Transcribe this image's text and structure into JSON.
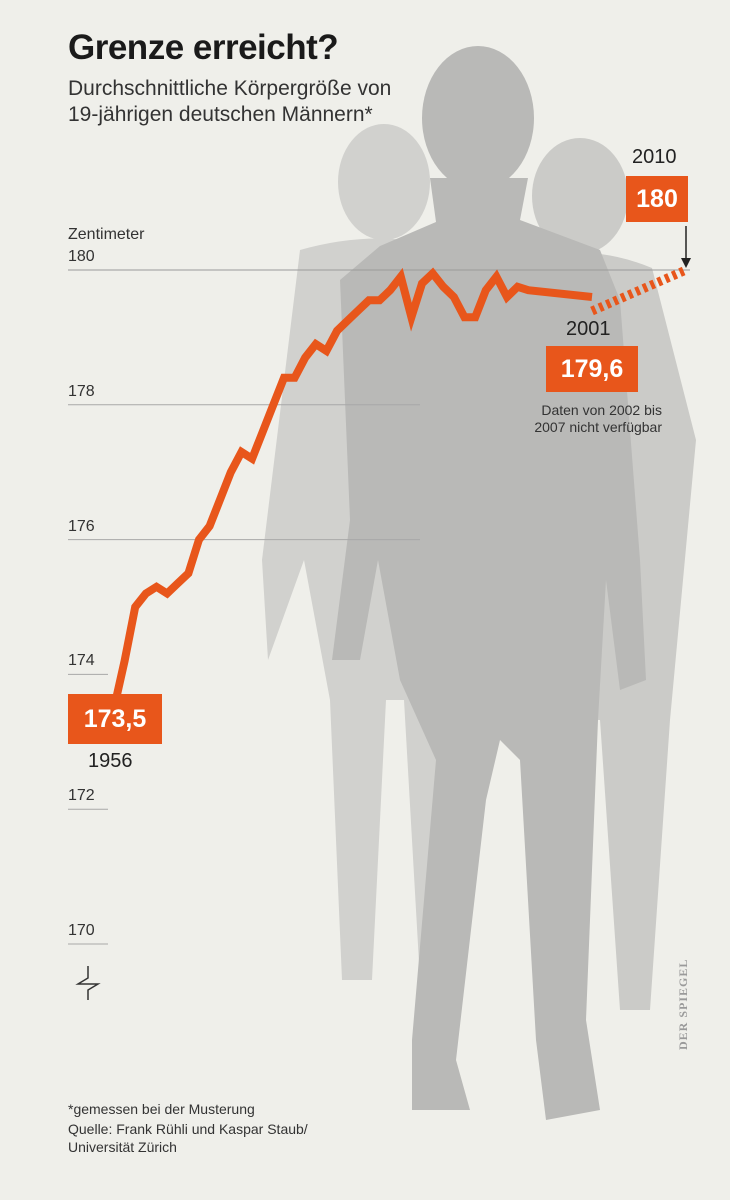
{
  "title": "Grenze erreicht?",
  "subtitle": "Durchschnittliche Körpergröße von 19-jährigen deutschen Männern*",
  "footnote": "*gemessen bei der Musterung",
  "source": "Quelle: Frank Rühli und Kaspar Staub/ Universität Zürich",
  "publisher": "DER SPIEGEL",
  "note": "Daten von 2002 bis 2007 nicht verfügbar",
  "highlights": {
    "start": {
      "year": "1956",
      "value": "173,5"
    },
    "peak": {
      "year": "2001",
      "value": "179,6"
    },
    "end": {
      "year": "2010",
      "value": "180"
    }
  },
  "colors": {
    "line": "#e8561b",
    "background": "#efefea",
    "silhouette": "#b9b9b7"
  },
  "chart_data": {
    "type": "line",
    "title": "Grenze erreicht?",
    "ylabel": "Zentimeter",
    "yticks": [
      170,
      172,
      174,
      176,
      178,
      180
    ],
    "ylim": [
      169,
      181
    ],
    "xlim": [
      1956,
      2010
    ],
    "axis_break": true,
    "series": [
      {
        "values": [
          [
            1956,
            173.5
          ],
          [
            1957,
            174.2
          ],
          [
            1958,
            175.0
          ],
          [
            1959,
            175.2
          ],
          [
            1960,
            175.3
          ],
          [
            1961,
            175.2
          ],
          [
            1962,
            175.35
          ],
          [
            1963,
            175.5
          ],
          [
            1964,
            176.0
          ],
          [
            1965,
            176.2
          ],
          [
            1966,
            176.6
          ],
          [
            1967,
            177.0
          ],
          [
            1968,
            177.3
          ],
          [
            1969,
            177.2
          ],
          [
            1970,
            177.6
          ],
          [
            1971,
            178.0
          ],
          [
            1972,
            178.4
          ],
          [
            1973,
            178.4
          ],
          [
            1974,
            178.7
          ],
          [
            1975,
            178.9
          ],
          [
            1976,
            178.8
          ],
          [
            1977,
            179.1
          ],
          [
            1978,
            179.25
          ],
          [
            1979,
            179.4
          ],
          [
            1980,
            179.55
          ],
          [
            1981,
            179.55
          ],
          [
            1982,
            179.7
          ],
          [
            1983,
            179.9
          ],
          [
            1984,
            179.3
          ],
          [
            1985,
            179.8
          ],
          [
            1986,
            179.95
          ],
          [
            1987,
            179.75
          ],
          [
            1988,
            179.6
          ],
          [
            1989,
            179.3
          ],
          [
            1990,
            179.3
          ],
          [
            1991,
            179.7
          ],
          [
            1992,
            179.9
          ],
          [
            1993,
            179.6
          ],
          [
            1994,
            179.75
          ],
          [
            1995,
            179.7
          ]
        ]
      }
    ],
    "gap": {
      "from": 2001,
      "to": 2010,
      "values": [
        [
          2001,
          179.6
        ],
        [
          2010,
          180.0
        ]
      ],
      "style": "dashed"
    }
  }
}
